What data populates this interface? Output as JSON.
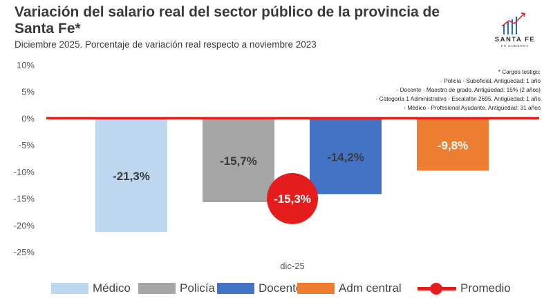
{
  "title": "Variación del salario real del sector público de la provincia de Santa Fe*",
  "subtitle": "Diciembre 2025. Porcentaje de variación real respecto a noviembre 2023",
  "logo": {
    "text": "SANTA FE",
    "sub": "EN NÚMEROS"
  },
  "notes": [
    "* Cargos testigo:",
    "- Policía - Suboficial. Antigüedad: 1 año",
    "- Docente - Maestro de grado. Antigüedad: 15% (2 años)",
    "- Categoría 1 Administrativo - Escalafón 2695. Antigüedad: 1 año",
    "- Médico - Profesional Ayudante. Antigüedad: 31 años"
  ],
  "chart_data": {
    "type": "bar",
    "categories": [
      "dic-25"
    ],
    "series": [
      {
        "name": "Médico",
        "values": [
          -21.3
        ],
        "label": "-21,3%",
        "color": "#bdd7ee"
      },
      {
        "name": "Policía",
        "values": [
          -15.7
        ],
        "label": "-15,7%",
        "color": "#a5a5a5"
      },
      {
        "name": "Docente",
        "values": [
          -14.2
        ],
        "label": "-14,2%",
        "color": "#4472c4"
      },
      {
        "name": "Adm central",
        "values": [
          -9.8
        ],
        "label": "-9,8%",
        "color": "#ed7d31"
      }
    ],
    "average": {
      "name": "Promedio",
      "value": -15.3,
      "label": "-15,3%",
      "color": "#e51c1c"
    },
    "ylim": [
      -25,
      10
    ],
    "yticks": [
      "10%",
      "5%",
      "0%",
      "-5%",
      "-10%",
      "-15%",
      "-20%",
      "-25%"
    ],
    "ytick_values": [
      10,
      5,
      0,
      -5,
      -10,
      -15,
      -20,
      -25
    ],
    "zero_line_color": "#e51c1c",
    "grid": false,
    "legend_position": "bottom"
  }
}
